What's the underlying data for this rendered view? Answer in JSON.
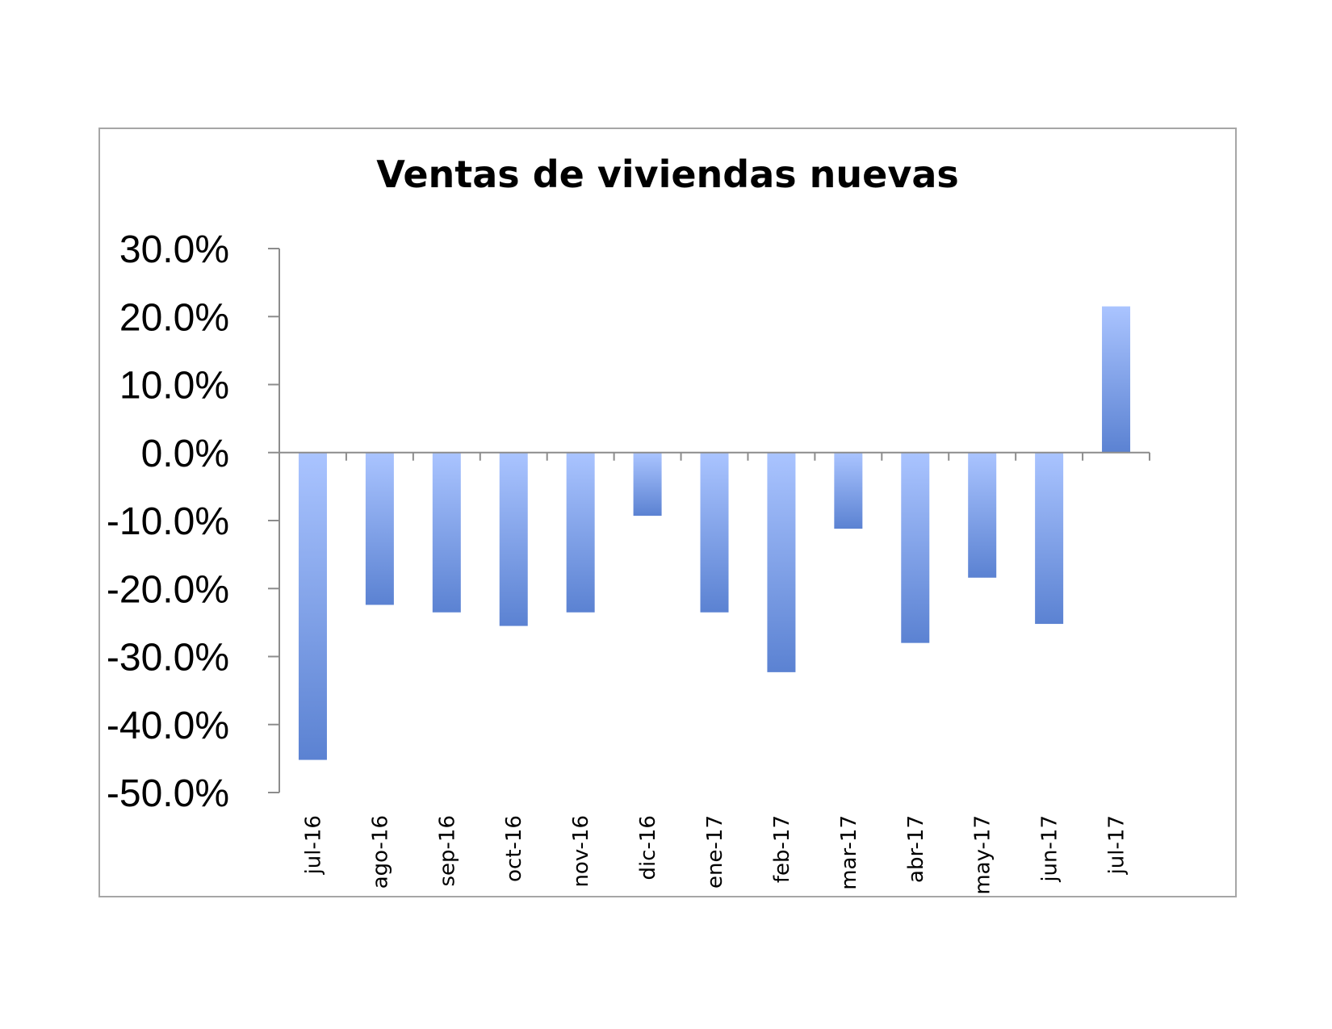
{
  "chart_data": {
    "type": "bar",
    "title": "Ventas de viviendas nuevas",
    "xlabel": "",
    "ylabel": "",
    "categories": [
      "jul-16",
      "ago-16",
      "sep-16",
      "oct-16",
      "nov-16",
      "dic-16",
      "ene-17",
      "feb-17",
      "mar-17",
      "abr-17",
      "may-17",
      "jun-17",
      "jul-17"
    ],
    "values": [
      -45.2,
      -22.4,
      -23.5,
      -25.5,
      -23.5,
      -9.3,
      -23.5,
      -32.3,
      -11.2,
      -28.0,
      -18.4,
      -25.2,
      21.5
    ],
    "ylim": [
      -50,
      30
    ],
    "yticks": [
      30,
      20,
      10,
      0,
      -10,
      -20,
      -30,
      -40,
      -50
    ],
    "ytick_labels": [
      "30.0%",
      "20.0%",
      "10.0%",
      "0.0%",
      "-10.0%",
      "-20.0%",
      "-30.0%",
      "-40.0%",
      "-50.0%"
    ],
    "grid": false,
    "legend": "none",
    "colors": {
      "bar_light": "#aac4ff",
      "bar_dark": "#5b82d2",
      "axis": "#8c8c8c",
      "frame": "#a6a6a6"
    }
  }
}
